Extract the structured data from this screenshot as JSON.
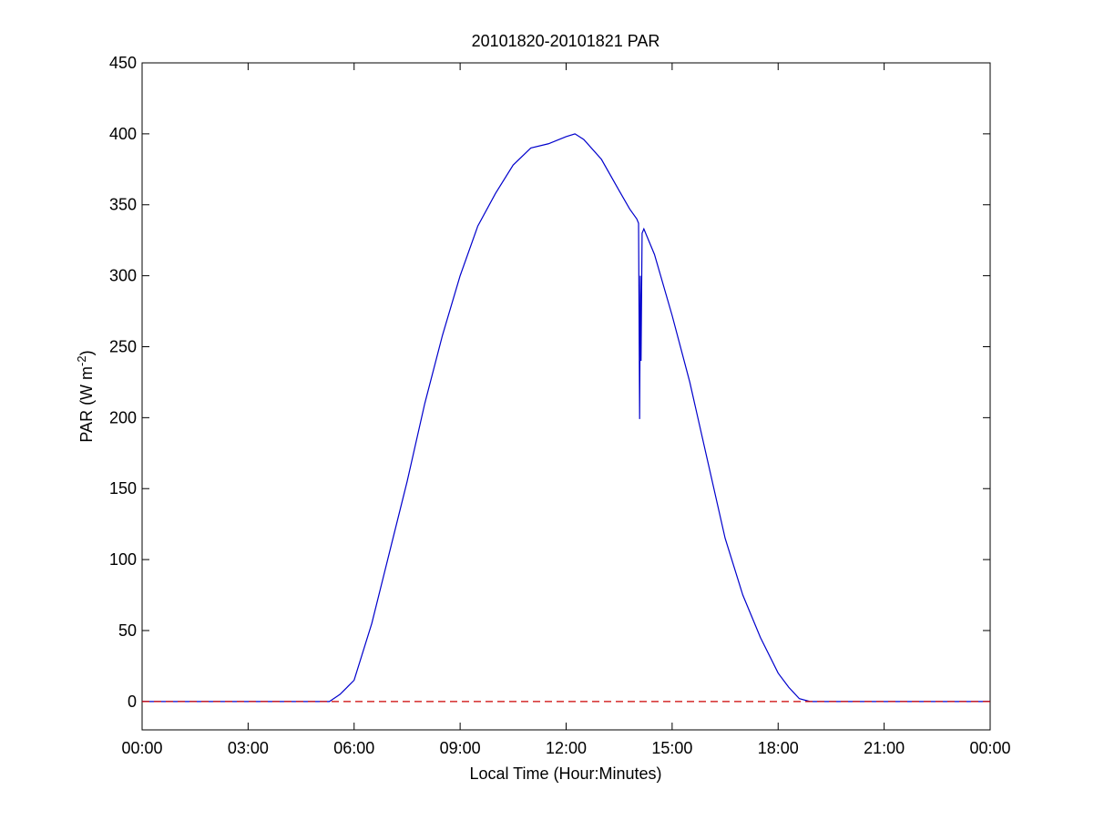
{
  "chart_data": {
    "type": "line",
    "title": "20101820-20101821 PAR",
    "xlabel": "Local Time (Hour:Minutes)",
    "ylabel": {
      "base": "PAR (W m",
      "superscript": "-2",
      "close": ")"
    },
    "xlim": [
      0,
      24
    ],
    "ylim": [
      -20,
      450
    ],
    "x_ticks": [
      {
        "value": 0,
        "label": "00:00"
      },
      {
        "value": 3,
        "label": "03:00"
      },
      {
        "value": 6,
        "label": "06:00"
      },
      {
        "value": 9,
        "label": "09:00"
      },
      {
        "value": 12,
        "label": "12:00"
      },
      {
        "value": 15,
        "label": "15:00"
      },
      {
        "value": 18,
        "label": "18:00"
      },
      {
        "value": 21,
        "label": "21:00"
      },
      {
        "value": 24,
        "label": "00:00"
      }
    ],
    "y_ticks": [
      {
        "value": 0,
        "label": "0"
      },
      {
        "value": 50,
        "label": "50"
      },
      {
        "value": 100,
        "label": "100"
      },
      {
        "value": 150,
        "label": "150"
      },
      {
        "value": 200,
        "label": "200"
      },
      {
        "value": 250,
        "label": "250"
      },
      {
        "value": 300,
        "label": "300"
      },
      {
        "value": 350,
        "label": "350"
      },
      {
        "value": 400,
        "label": "400"
      },
      {
        "value": 450,
        "label": "450"
      }
    ],
    "grid": false,
    "series": [
      {
        "color": "#0000cc",
        "style": "solid",
        "x": [
          0,
          3,
          5.3,
          5.6,
          5.8,
          6.0,
          6.5,
          7.0,
          7.5,
          8.0,
          8.5,
          9.0,
          9.5,
          10.0,
          10.5,
          11.0,
          11.5,
          12.0,
          12.25,
          12.5,
          13.0,
          13.5,
          13.8,
          14.0,
          14.05,
          14.08,
          14.1,
          14.12,
          14.15,
          14.2,
          14.5,
          15.0,
          15.5,
          16.0,
          16.5,
          17.0,
          17.5,
          18.0,
          18.3,
          18.6,
          18.9,
          19.2,
          21,
          24
        ],
        "y": [
          0,
          0,
          0,
          5,
          10,
          15,
          55,
          105,
          155,
          210,
          258,
          300,
          335,
          358,
          378,
          390,
          393,
          398,
          400,
          396,
          382,
          360,
          347,
          340,
          337,
          199,
          300,
          240,
          330,
          333,
          315,
          272,
          225,
          170,
          115,
          75,
          45,
          20,
          10,
          2,
          0,
          0,
          0,
          0
        ]
      },
      {
        "color": "#cc0000",
        "style": "dashed",
        "x": [
          0,
          24
        ],
        "y": [
          0,
          0
        ]
      }
    ]
  }
}
